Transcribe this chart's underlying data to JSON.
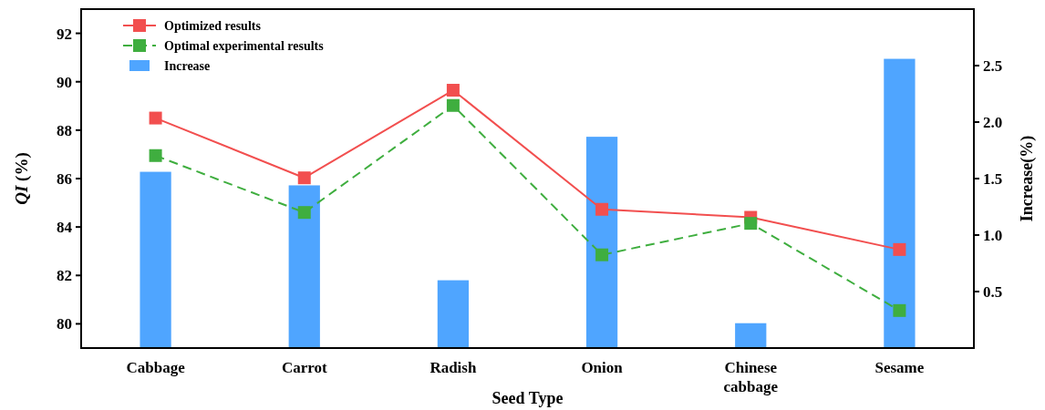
{
  "chart_data": {
    "type": "bar",
    "xlabel": "Seed Type",
    "ylabel": "QI (%)",
    "y2label": "Increase(%)",
    "categories": [
      "Cabbage",
      "Carrot",
      "Radish",
      "Onion",
      "Chinese cabbage",
      "Sesame"
    ],
    "series": [
      {
        "name": "Optimized results",
        "type": "line",
        "color": "#f24f4f",
        "marker": "square",
        "line_style": "solid",
        "values": [
          88.5,
          86.03,
          89.65,
          84.73,
          84.4,
          83.07
        ]
      },
      {
        "name": "Optimal experimental results",
        "type": "line",
        "color": "#3fae3f",
        "marker": "square",
        "line_style": "dashed",
        "values": [
          86.95,
          84.6,
          89.02,
          82.85,
          84.15,
          80.55
        ]
      },
      {
        "name": "Increase",
        "axis": "y2",
        "color": "#4fa5ff",
        "values": [
          1.56,
          1.44,
          0.6,
          1.87,
          0.22,
          2.56
        ]
      }
    ],
    "ylim": [
      79,
      93
    ],
    "yticks": [
      80,
      82,
      84,
      86,
      88,
      90,
      92
    ],
    "y2lim": [
      0,
      3
    ],
    "y2ticks": [
      {
        "value": 0.5,
        "label": "0.5"
      },
      {
        "value": 1,
        "label": "1.0"
      },
      {
        "value": 1.5,
        "label": "1.5"
      },
      {
        "value": 2,
        "label": "2.0"
      },
      {
        "value": 2.5,
        "label": "2.5"
      }
    ],
    "grid": false,
    "legend": "top left"
  }
}
